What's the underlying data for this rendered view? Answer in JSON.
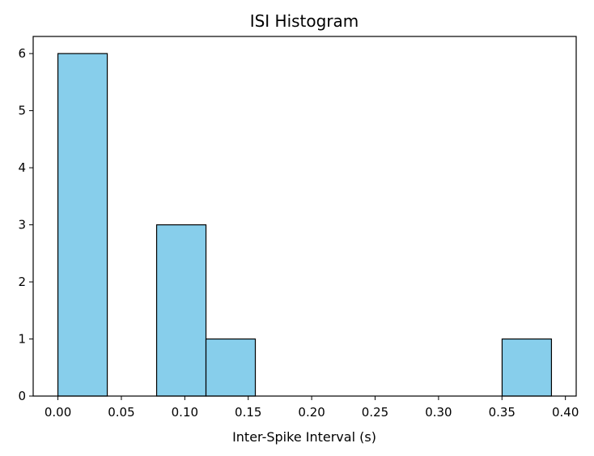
{
  "chart_data": {
    "type": "bar",
    "title": "ISI Histogram",
    "xlabel": "Inter-Spike Interval (s)",
    "ylabel": "",
    "xlim": [
      -0.0195,
      0.4085
    ],
    "ylim": [
      0,
      6.3
    ],
    "x_ticks": [
      "0.00",
      "0.05",
      "0.10",
      "0.15",
      "0.20",
      "0.25",
      "0.30",
      "0.35",
      "0.40"
    ],
    "y_ticks": [
      "0",
      "1",
      "2",
      "3",
      "4",
      "5",
      "6"
    ],
    "bins": [
      {
        "start": 0.0,
        "end": 0.0389,
        "count": 6
      },
      {
        "start": 0.0389,
        "end": 0.0778,
        "count": 0
      },
      {
        "start": 0.0778,
        "end": 0.1167,
        "count": 3
      },
      {
        "start": 0.1167,
        "end": 0.1556,
        "count": 1
      },
      {
        "start": 0.1556,
        "end": 0.1945,
        "count": 0
      },
      {
        "start": 0.1945,
        "end": 0.2334,
        "count": 0
      },
      {
        "start": 0.2334,
        "end": 0.2723,
        "count": 0
      },
      {
        "start": 0.2723,
        "end": 0.3112,
        "count": 0
      },
      {
        "start": 0.3112,
        "end": 0.3501,
        "count": 0
      },
      {
        "start": 0.3501,
        "end": 0.389,
        "count": 1
      }
    ],
    "bar_color": "#87CEEB",
    "edge_color": "#000000",
    "grid": false,
    "legend": "none"
  }
}
